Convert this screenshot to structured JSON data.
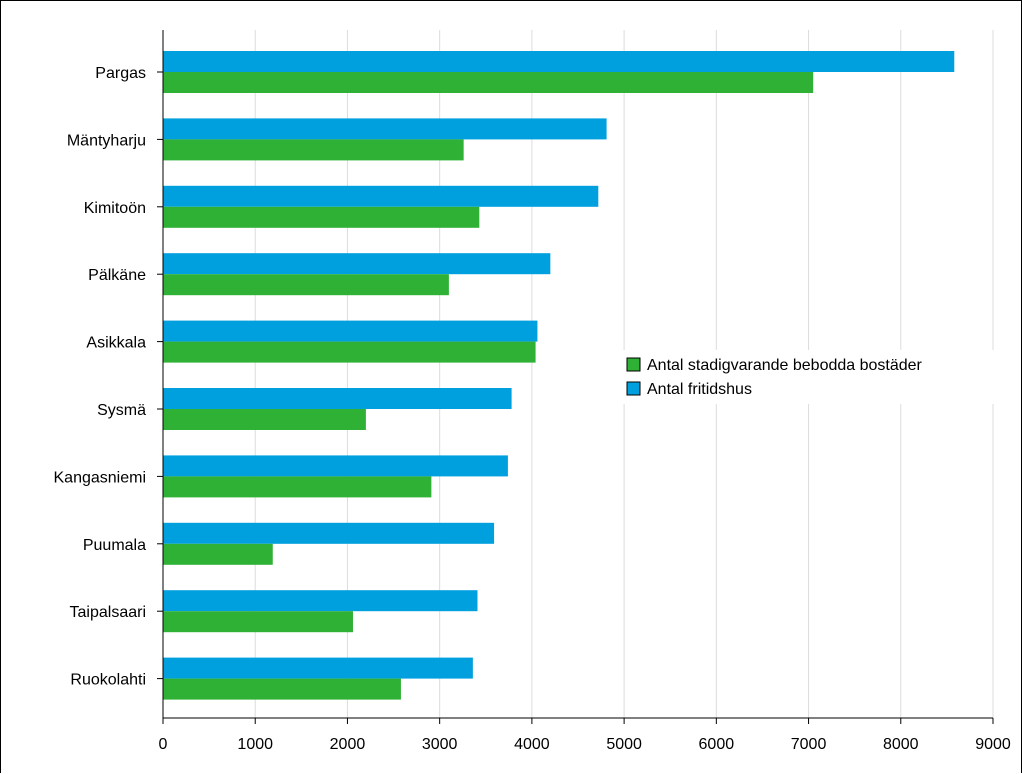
{
  "chart_data": {
    "type": "bar",
    "orientation": "horizontal",
    "title": "",
    "xlabel": "",
    "ylabel": "",
    "categories": [
      "Pargas",
      "Mäntyharju",
      "Kimitoön",
      "Pälkäne",
      "Asikkala",
      "Sysmä",
      "Kangasniemi",
      "Puumala",
      "Taipalsaari",
      "Ruokolahti"
    ],
    "series": [
      {
        "name": "Antal fritidshus",
        "color": "#009fde",
        "values": [
          8580,
          4810,
          4720,
          4200,
          4060,
          3780,
          3740,
          3590,
          3410,
          3360
        ]
      },
      {
        "name": "Antal stadigvarande bebodda bostäder",
        "color": "#2eb135",
        "values": [
          7050,
          3260,
          3430,
          3100,
          4040,
          2200,
          2910,
          1190,
          2060,
          2580
        ]
      }
    ],
    "xlim": [
      0,
      9000
    ],
    "xticks": [
      "0",
      "1000",
      "2000",
      "3000",
      "4000",
      "5000",
      "6000",
      "7000",
      "8000",
      "9000"
    ],
    "grid": "vertical",
    "legend": {
      "placement": "center-right",
      "entries": [
        {
          "label": "Antal stadigvarande bebodda bostäder",
          "color": "#2eb135"
        },
        {
          "label": "Antal fritidshus",
          "color": "#009fde"
        }
      ]
    }
  }
}
